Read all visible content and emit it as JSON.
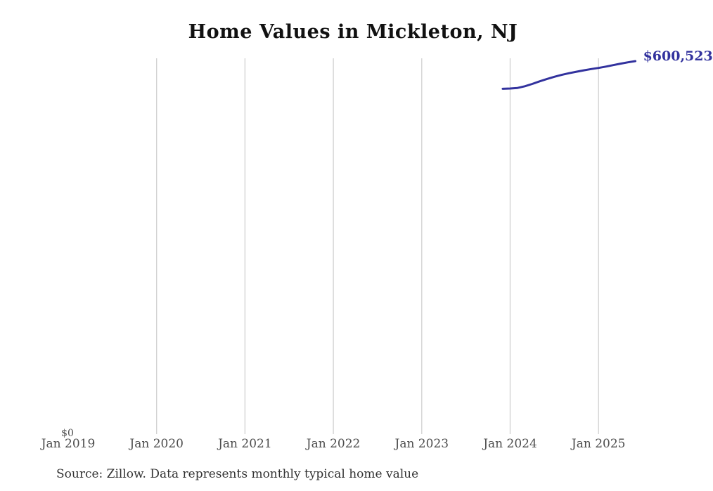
{
  "chart_data": {
    "type": "line",
    "title": "Home Values in Mickleton, NJ",
    "source_note": "Source: Zillow. Data represents monthly typical home value",
    "xlabel": "",
    "ylabel": "",
    "ylim": [
      0,
      605000
    ],
    "grid": "vertical-only",
    "legend": "none",
    "y_zero_label": "$0",
    "end_label": "$600,523",
    "colors": {
      "line": "#32329e",
      "gridline": "#d0d0d0",
      "tick_label": "#4d4d4d",
      "title": "#111111",
      "source": "#333333",
      "background": "#ffffff"
    },
    "x_tick_labels": [
      "Jan 2019",
      "Jan 2020",
      "Jan 2021",
      "Jan 2022",
      "Jan 2023",
      "Jan 2024",
      "Jan 2025"
    ],
    "x_ticks_with_gridline": [
      "Jan 2020",
      "Jan 2021",
      "Jan 2022",
      "Jan 2023",
      "Jan 2024",
      "Jan 2025"
    ],
    "series": [
      {
        "name": "Typical home value",
        "x": [
          "2023-12",
          "2024-01",
          "2024-02",
          "2024-03",
          "2024-04",
          "2024-05",
          "2024-06",
          "2024-07",
          "2024-08",
          "2024-09",
          "2024-10",
          "2024-11",
          "2024-12",
          "2025-01",
          "2025-02",
          "2025-03",
          "2025-04",
          "2025-05",
          "2025-06"
        ],
        "values": [
          556000,
          556400,
          557300,
          560000,
          563800,
          567900,
          571800,
          575300,
          578400,
          581100,
          583500,
          585700,
          587700,
          589500,
          591700,
          594100,
          596500,
          598600,
          600523
        ]
      }
    ]
  }
}
